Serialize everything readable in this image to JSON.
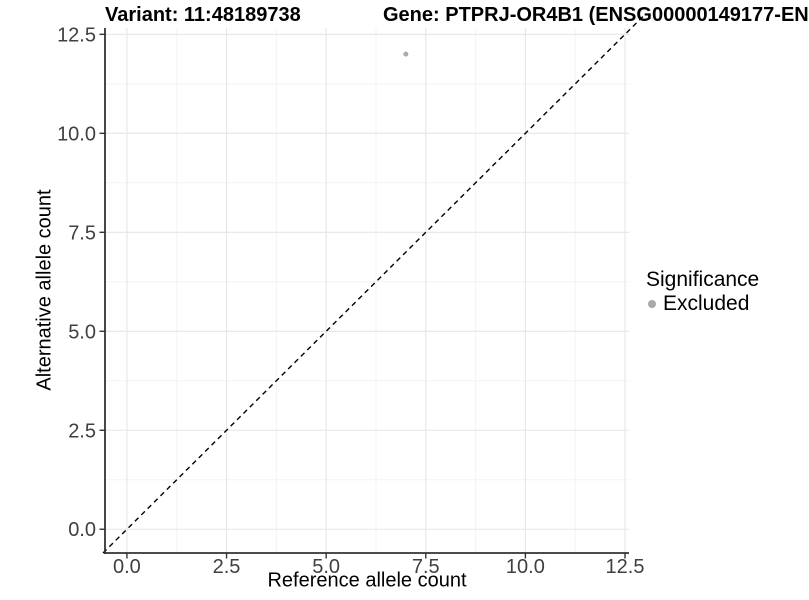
{
  "chart_data": {
    "type": "scatter",
    "title_left": "Variant: 11:48189738",
    "title_right": "Gene: PTPRJ-OR4B1 (ENSG00000149177-EN",
    "xlabel": "Reference allele count",
    "ylabel": "Alternative allele count",
    "xlim": [
      -0.55,
      12.6
    ],
    "ylim": [
      -0.6,
      12.66
    ],
    "xticks": [
      0.0,
      2.5,
      5.0,
      7.5,
      10.0,
      12.5
    ],
    "yticks": [
      0.0,
      2.5,
      5.0,
      7.5,
      10.0,
      12.5
    ],
    "xtick_labels": [
      "0.0",
      "2.5",
      "5.0",
      "7.5",
      "10.0",
      "12.5"
    ],
    "ytick_labels": [
      "0.0",
      "2.5",
      "5.0",
      "7.5",
      "10.0",
      "12.5"
    ],
    "minor_ticks": [
      1.25,
      3.75,
      6.25,
      8.75,
      11.25
    ],
    "grid": true,
    "series": [
      {
        "name": "Excluded",
        "color": "#ababab",
        "points": [
          {
            "x": 7,
            "y": 12
          }
        ]
      }
    ],
    "reference_line": {
      "slope": 1,
      "intercept": 0,
      "style": "dashed",
      "color": "#000000",
      "range": [
        -0.6,
        12.95
      ]
    },
    "legend": {
      "position": "right",
      "title": "Significance",
      "items": [
        {
          "label": "Excluded",
          "color": "#a9a9a9"
        }
      ]
    },
    "colors": {
      "background": "#ffffff",
      "grid_major": "#e6e6e6",
      "grid_minor": "#f3f3f3",
      "axis_line": "#333333",
      "tick_label": "#404040",
      "text": "#000000"
    }
  }
}
